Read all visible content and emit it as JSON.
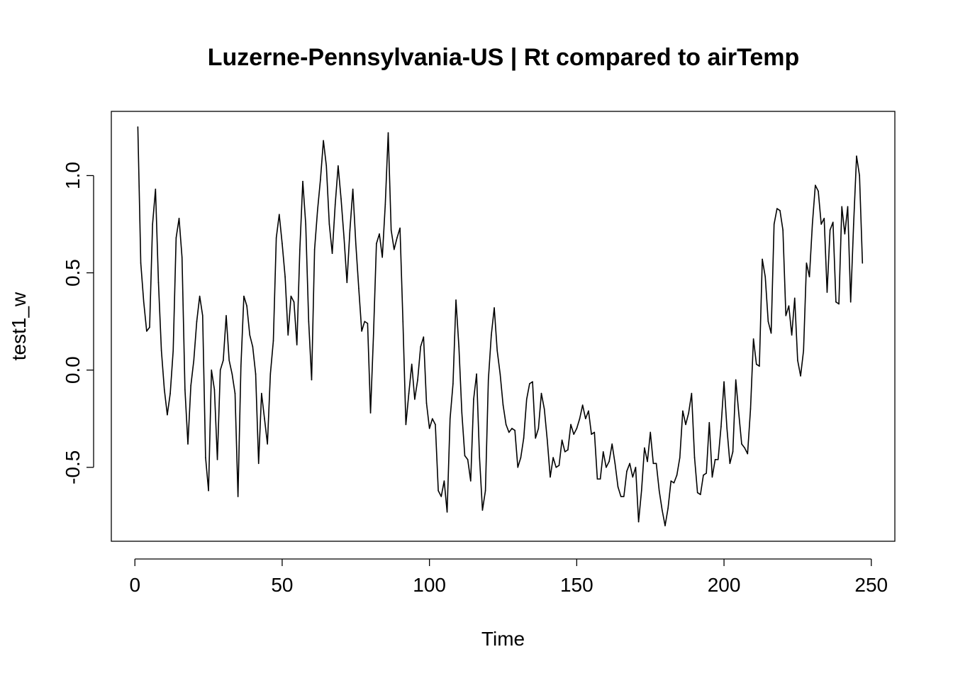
{
  "chart_data": {
    "type": "line",
    "title": "Luzerne-Pennsylvania-US | Rt compared to airTemp",
    "xlabel": "Time",
    "ylabel": "test1_w",
    "xlim": [
      -8,
      258
    ],
    "ylim": [
      -0.88,
      1.33
    ],
    "x_ticks": [
      0,
      50,
      100,
      150,
      200,
      250
    ],
    "x_tick_labels": [
      "0",
      "50",
      "100",
      "150",
      "200",
      "250"
    ],
    "y_ticks": [
      -0.5,
      0.0,
      0.5,
      1.0
    ],
    "y_tick_labels": [
      "-0.5",
      "0.0",
      "0.5",
      "1.0"
    ],
    "grid": false,
    "legend": "none",
    "series": [
      {
        "x_start": 1,
        "x_step": 1,
        "values": [
          1.25,
          0.55,
          0.35,
          0.2,
          0.22,
          0.75,
          0.93,
          0.45,
          0.1,
          -0.1,
          -0.23,
          -0.12,
          0.1,
          0.68,
          0.78,
          0.58,
          -0.1,
          -0.38,
          -0.08,
          0.05,
          0.25,
          0.38,
          0.28,
          -0.45,
          -0.62,
          0.0,
          -0.1,
          -0.46,
          0.0,
          0.05,
          0.28,
          0.05,
          -0.02,
          -0.12,
          -0.65,
          0.02,
          0.38,
          0.33,
          0.18,
          0.12,
          -0.02,
          -0.48,
          -0.12,
          -0.25,
          -0.38,
          -0.02,
          0.15,
          0.68,
          0.8,
          0.65,
          0.48,
          0.18,
          0.38,
          0.35,
          0.13,
          0.62,
          0.97,
          0.75,
          0.25,
          -0.05,
          0.62,
          0.82,
          0.98,
          1.18,
          1.05,
          0.75,
          0.6,
          0.85,
          1.05,
          0.88,
          0.68,
          0.45,
          0.72,
          0.93,
          0.65,
          0.42,
          0.2,
          0.25,
          0.24,
          -0.22,
          0.18,
          0.65,
          0.7,
          0.58,
          0.85,
          1.22,
          0.72,
          0.62,
          0.68,
          0.73,
          0.25,
          -0.28,
          -0.12,
          0.03,
          -0.15,
          -0.05,
          0.12,
          0.17,
          -0.17,
          -0.3,
          -0.25,
          -0.28,
          -0.62,
          -0.65,
          -0.57,
          -0.73,
          -0.25,
          -0.07,
          0.36,
          0.12,
          -0.22,
          -0.44,
          -0.46,
          -0.57,
          -0.15,
          -0.02,
          -0.45,
          -0.72,
          -0.62,
          -0.05,
          0.18,
          0.32,
          0.1,
          -0.02,
          -0.18,
          -0.28,
          -0.32,
          -0.3,
          -0.31,
          -0.5,
          -0.45,
          -0.35,
          -0.15,
          -0.07,
          -0.06,
          -0.35,
          -0.3,
          -0.12,
          -0.2,
          -0.36,
          -0.55,
          -0.45,
          -0.5,
          -0.49,
          -0.36,
          -0.42,
          -0.41,
          -0.28,
          -0.33,
          -0.3,
          -0.25,
          -0.18,
          -0.25,
          -0.21,
          -0.33,
          -0.32,
          -0.56,
          -0.56,
          -0.42,
          -0.5,
          -0.47,
          -0.38,
          -0.48,
          -0.6,
          -0.65,
          -0.65,
          -0.52,
          -0.48,
          -0.55,
          -0.5,
          -0.78,
          -0.62,
          -0.4,
          -0.47,
          -0.32,
          -0.48,
          -0.48,
          -0.62,
          -0.72,
          -0.8,
          -0.71,
          -0.57,
          -0.58,
          -0.54,
          -0.45,
          -0.21,
          -0.28,
          -0.22,
          -0.12,
          -0.45,
          -0.63,
          -0.64,
          -0.54,
          -0.53,
          -0.27,
          -0.55,
          -0.46,
          -0.46,
          -0.29,
          -0.06,
          -0.3,
          -0.48,
          -0.42,
          -0.05,
          -0.22,
          -0.38,
          -0.4,
          -0.43,
          -0.2,
          0.16,
          0.03,
          0.02,
          0.57,
          0.48,
          0.25,
          0.19,
          0.75,
          0.83,
          0.82,
          0.72,
          0.28,
          0.33,
          0.18,
          0.37,
          0.05,
          -0.03,
          0.1,
          0.55,
          0.48,
          0.75,
          0.95,
          0.92,
          0.75,
          0.78,
          0.4,
          0.72,
          0.76,
          0.35,
          0.34,
          0.84,
          0.7,
          0.84,
          0.35,
          0.75,
          1.1,
          1.0,
          0.55
        ]
      }
    ]
  }
}
